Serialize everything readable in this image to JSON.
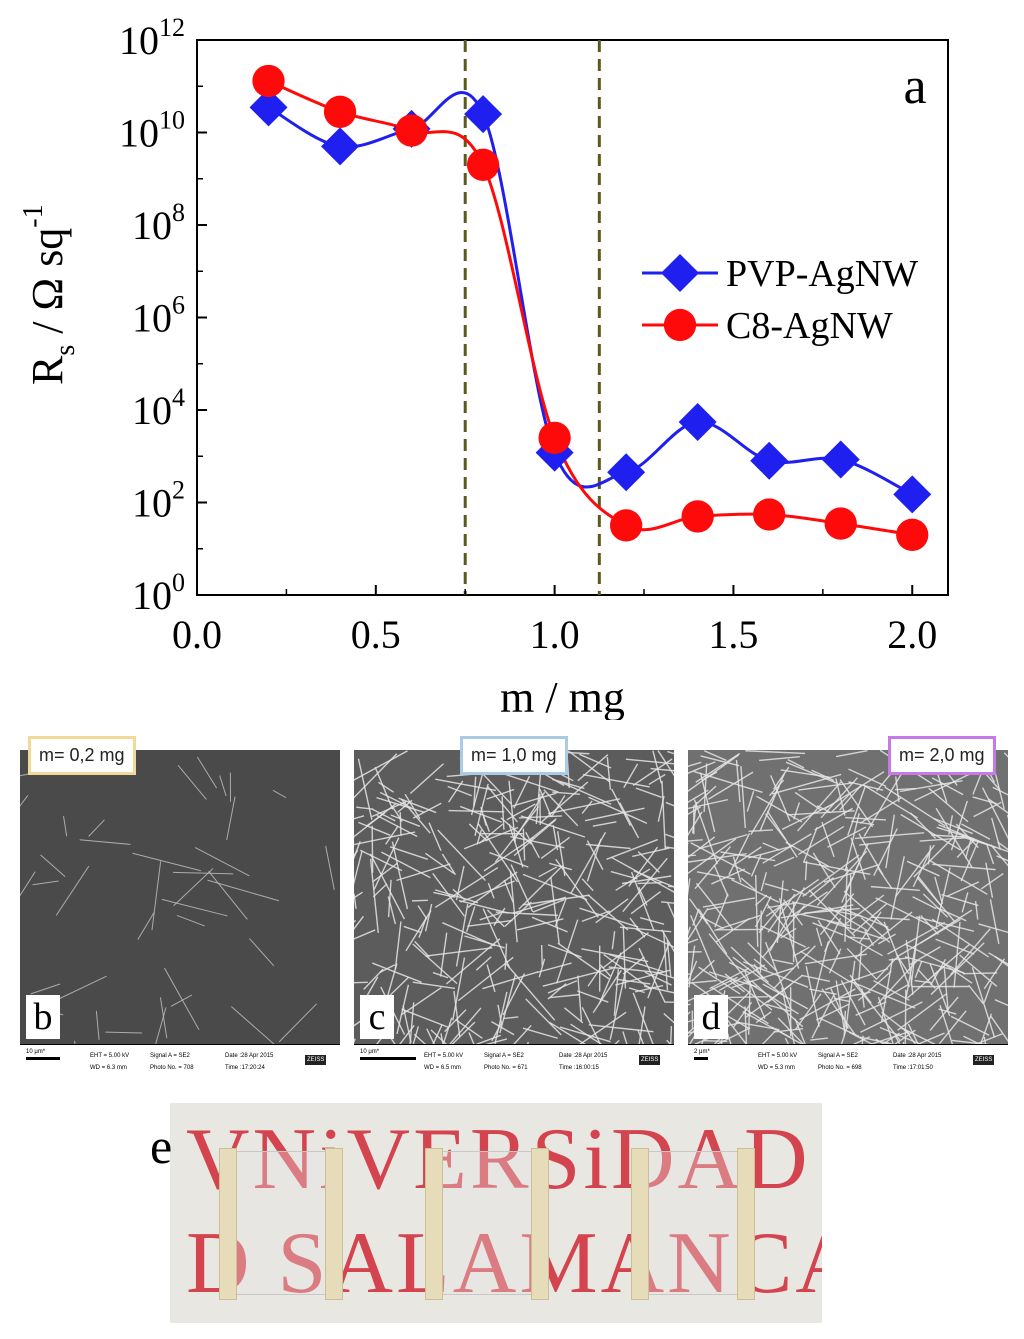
{
  "chart_data": {
    "type": "line",
    "panel_label": "a",
    "xlabel": "m / mg",
    "ylabel": "R_s / Ω sq^-1",
    "ylabel_main": "R",
    "ylabel_sub": "s",
    "ylabel_rest": " / Ω sq",
    "ylabel_sup": "-1",
    "xlim": [
      0.0,
      2.1
    ],
    "ylim": [
      1,
      1000000000000.0
    ],
    "yscale": "log",
    "x_ticks": [
      "0.0",
      "0.5",
      "1.0",
      "1.5",
      "2.0"
    ],
    "x_tick_values": [
      0.0,
      0.5,
      1.0,
      1.5,
      2.0
    ],
    "y_ticks": [
      {
        "base": "10",
        "exp": "0",
        "value": 1
      },
      {
        "base": "10",
        "exp": "2",
        "value": 100
      },
      {
        "base": "10",
        "exp": "4",
        "value": 10000
      },
      {
        "base": "10",
        "exp": "6",
        "value": 1000000
      },
      {
        "base": "10",
        "exp": "8",
        "value": 100000000
      },
      {
        "base": "10",
        "exp": "10",
        "value": 10000000000
      },
      {
        "base": "10",
        "exp": "12",
        "value": 1000000000000
      }
    ],
    "vlines": [
      0.75,
      1.125
    ],
    "vline_color": "#5a5a1e",
    "legend_position": "right-middle",
    "series": [
      {
        "name": "PVP-AgNW",
        "color": "#1f1ff0",
        "marker": "diamond",
        "x": [
          0.2,
          0.4,
          0.6,
          0.8,
          1.0,
          1.2,
          1.4,
          1.6,
          1.8,
          2.0
        ],
        "y": [
          35000000000.0,
          5000000000.0,
          12000000000.0,
          25000000000.0,
          1200.0,
          450,
          5500,
          800,
          850,
          150
        ]
      },
      {
        "name": "C8-AgNW",
        "color": "#ff0a0a",
        "marker": "circle",
        "x": [
          0.2,
          0.4,
          0.6,
          0.8,
          1.0,
          1.2,
          1.4,
          1.6,
          1.8,
          2.0
        ],
        "y": [
          130000000000.0,
          28000000000.0,
          11000000000.0,
          2000000000.0,
          2500.0,
          32,
          50,
          55,
          35,
          20
        ]
      }
    ]
  },
  "sem_panels": [
    {
      "letter": "b",
      "mass_label": "m= 0,2 mg",
      "badge_color": "#f2d999",
      "scale": "10 μm*",
      "eht": "EHT = 5.00 kV",
      "wd": "WD = 6.3 mm",
      "signal": "Signal A = SE2",
      "photo": "Photo No. = 708",
      "date": "Date :28 Apr 2015",
      "time": "Time :17:20:24",
      "logo": "ZEISS"
    },
    {
      "letter": "c",
      "mass_label": "m= 1,0 mg",
      "badge_color": "#a9cbe6",
      "scale": "10 μm*",
      "eht": "EHT = 5.00 kV",
      "wd": "WD = 6.5 mm",
      "signal": "Signal A = SE2",
      "photo": "Photo No. = 671",
      "date": "Date :28 Apr 2015",
      "time": "Time :16:00:15",
      "logo": "ZEISS"
    },
    {
      "letter": "d",
      "mass_label": "m= 2,0 mg",
      "badge_color": "#c779e8",
      "scale": "2 μm*",
      "eht": "EHT = 5.00 kV",
      "wd": "WD = 5.3 mm",
      "signal": "Signal A = SE2",
      "photo": "Photo No. = 698",
      "date": "Date :28 Apr 2015",
      "time": "Time :17:01:50",
      "logo": "ZEISS"
    }
  ],
  "photo_panel": {
    "letter": "e",
    "line1": "VNiVERSiDAD",
    "line2": "D SALAMANCA"
  }
}
